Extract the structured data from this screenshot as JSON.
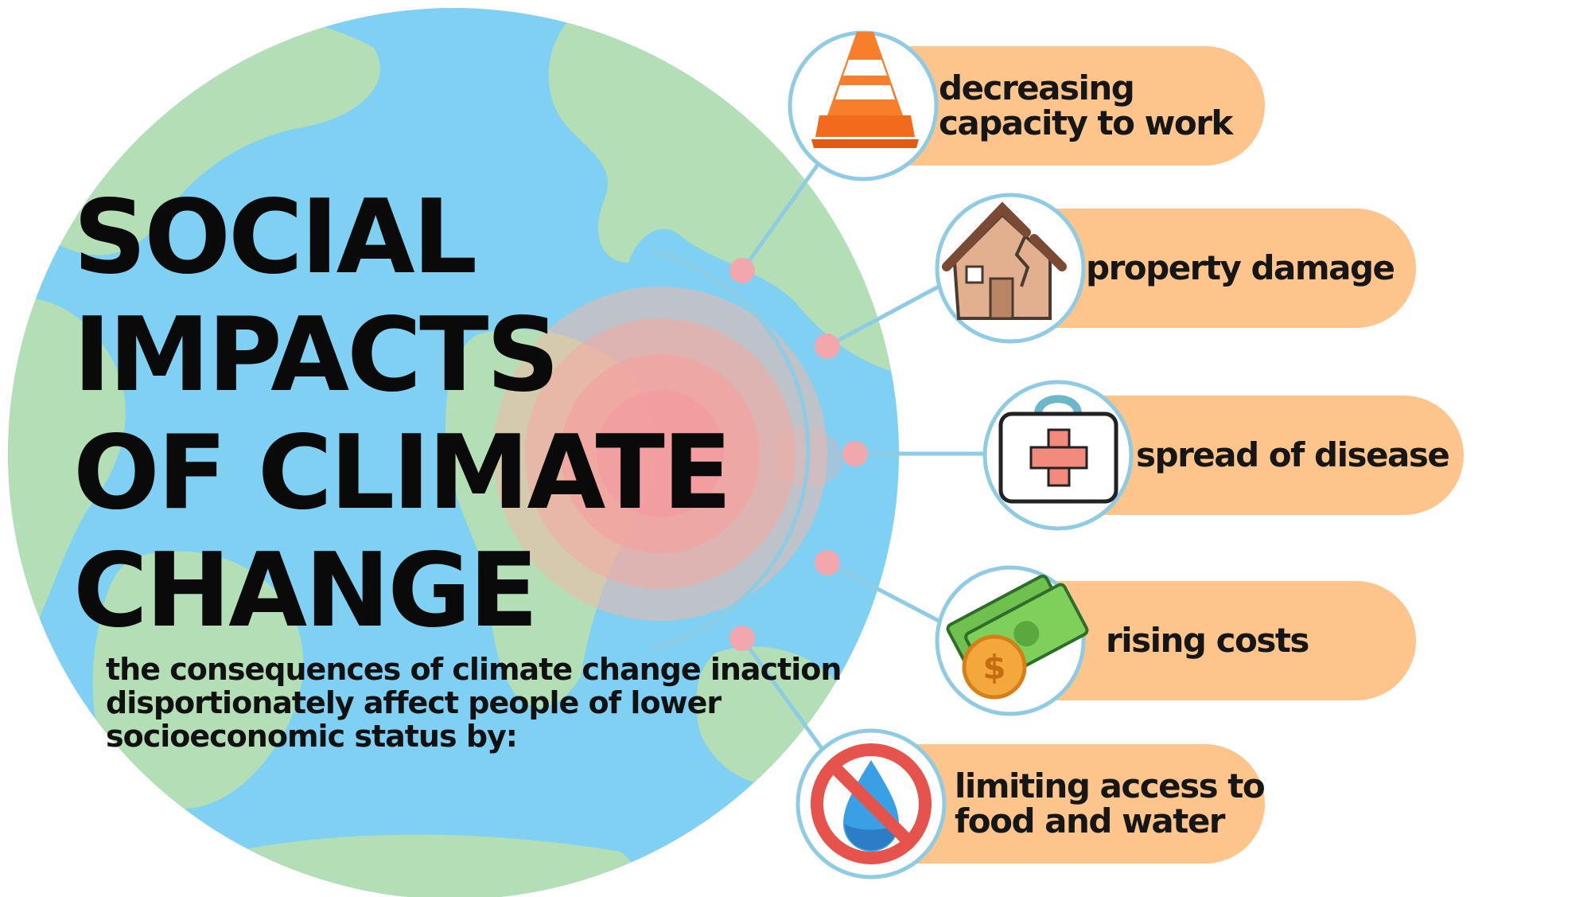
{
  "title": {
    "line1": "SOCIAL",
    "line2": "IMPACTS",
    "line3": "OF CLIMATE",
    "line4": "CHANGE"
  },
  "subtitle": "the consequences of climate change inaction disportionately affect people of lower socioeconomic status by:",
  "impacts": [
    {
      "line1": "decreasing",
      "line2": "capacity to work",
      "icon": "traffic-cone-icon"
    },
    {
      "line1": "property damage",
      "line2": "",
      "icon": "damaged-house-icon"
    },
    {
      "line1": "spread of disease",
      "line2": "",
      "icon": "first-aid-kit-icon"
    },
    {
      "line1": "rising costs",
      "line2": "",
      "icon": "money-icon"
    },
    {
      "line1": "limiting access to",
      "line2": "food and water",
      "icon": "no-water-icon"
    }
  ],
  "colors": {
    "ocean": "#7fd0f2",
    "land": "#b4dfb6",
    "hotspot": "#f4a0a4",
    "pill": "#fdc48b",
    "connector": "#8fcbe3",
    "node": "#f2a7ae",
    "text": "#111111"
  }
}
